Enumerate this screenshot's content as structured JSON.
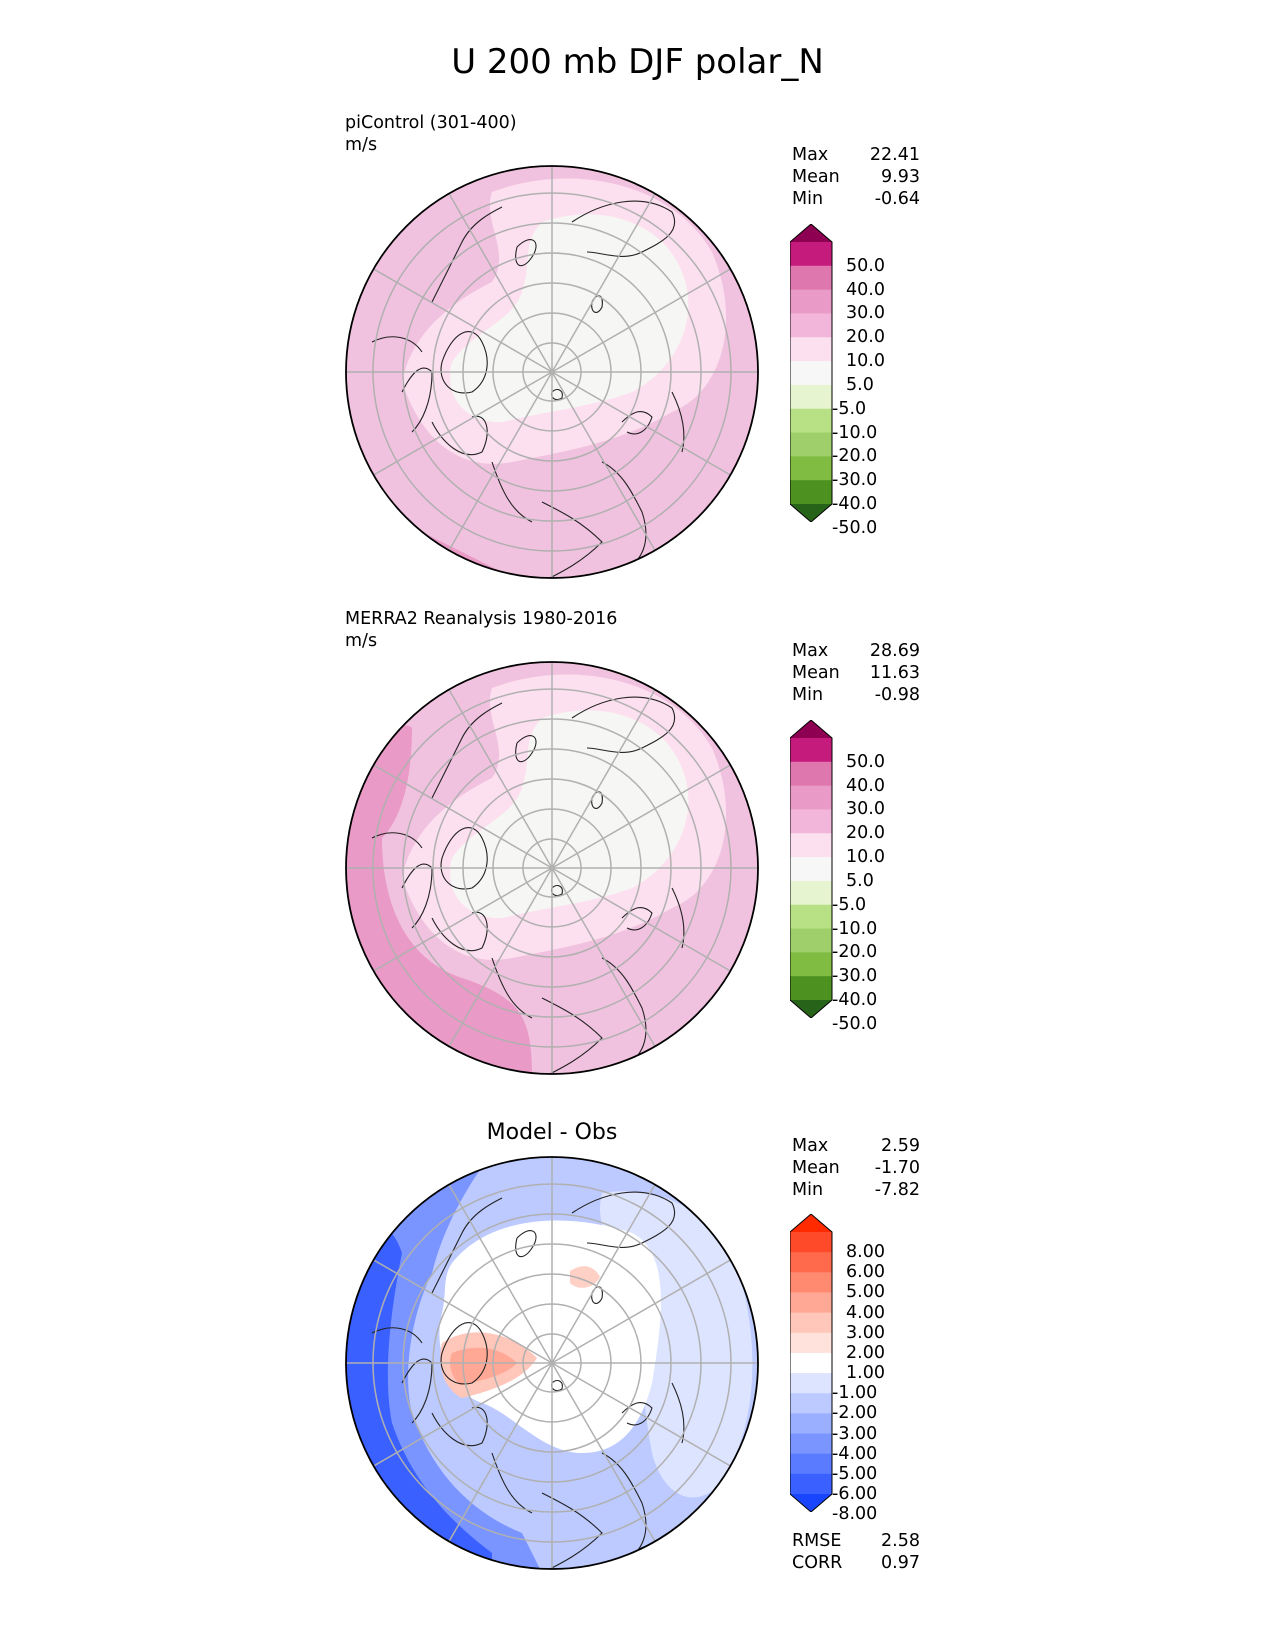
{
  "title": "U 200 mb DJF polar_N",
  "panels": [
    {
      "label": "piControl (301-400)",
      "units": "m/s",
      "stats": [
        {
          "name": "Max",
          "value": "22.41"
        },
        {
          "name": "Mean",
          "value": "9.93"
        },
        {
          "name": "Min",
          "value": "-0.64"
        }
      ],
      "colorbar": {
        "labels": [
          "50.0",
          "40.0",
          "30.0",
          "20.0",
          "10.0",
          "5.0",
          "-5.0",
          "-10.0",
          "-20.0",
          "-30.0",
          "-40.0",
          "-50.0"
        ],
        "colors": [
          "#8e0152",
          "#c51b7d",
          "#de77ae",
          "#e99ac6",
          "#f1b6da",
          "#fde0ef",
          "#f7f7f7",
          "#e6f5d0",
          "#b8e186",
          "#9fcf6a",
          "#7fbc41",
          "#4d9221",
          "#276419"
        ]
      },
      "background": "#f1c2df"
    },
    {
      "label": "MERRA2 Reanalysis 1980-2016",
      "units": "m/s",
      "stats": [
        {
          "name": "Max",
          "value": "28.69"
        },
        {
          "name": "Mean",
          "value": "11.63"
        },
        {
          "name": "Min",
          "value": "-0.98"
        }
      ],
      "colorbar": {
        "labels": [
          "50.0",
          "40.0",
          "30.0",
          "20.0",
          "10.0",
          "5.0",
          "-5.0",
          "-10.0",
          "-20.0",
          "-30.0",
          "-40.0",
          "-50.0"
        ],
        "colors": [
          "#8e0152",
          "#c51b7d",
          "#de77ae",
          "#e99ac6",
          "#f1b6da",
          "#fde0ef",
          "#f7f7f7",
          "#e6f5d0",
          "#b8e186",
          "#9fcf6a",
          "#7fbc41",
          "#4d9221",
          "#276419"
        ]
      },
      "background": "#f1c2df"
    },
    {
      "label": "Model - Obs",
      "stats": [
        {
          "name": "Max",
          "value": "2.59"
        },
        {
          "name": "Mean",
          "value": "-1.70"
        },
        {
          "name": "Min",
          "value": "-7.82"
        }
      ],
      "colorbar": {
        "labels": [
          "8.00",
          "6.00",
          "5.00",
          "4.00",
          "3.00",
          "2.00",
          "1.00",
          "-1.00",
          "-2.00",
          "-3.00",
          "-4.00",
          "-5.00",
          "-6.00",
          "-8.00"
        ],
        "colors": [
          "#ff2a00",
          "#ff4a2a",
          "#ff6a4c",
          "#ff8a70",
          "#ffa896",
          "#ffc6ba",
          "#ffe2dc",
          "#ffffff",
          "#dde4ff",
          "#bccaff",
          "#9aafff",
          "#7a95ff",
          "#5a7bff",
          "#3a60ff",
          "#1a45ff"
        ]
      },
      "background": "#ffffff",
      "metrics": [
        {
          "name": "RMSE",
          "value": "2.58"
        },
        {
          "name": "CORR",
          "value": "0.97"
        }
      ]
    }
  ]
}
